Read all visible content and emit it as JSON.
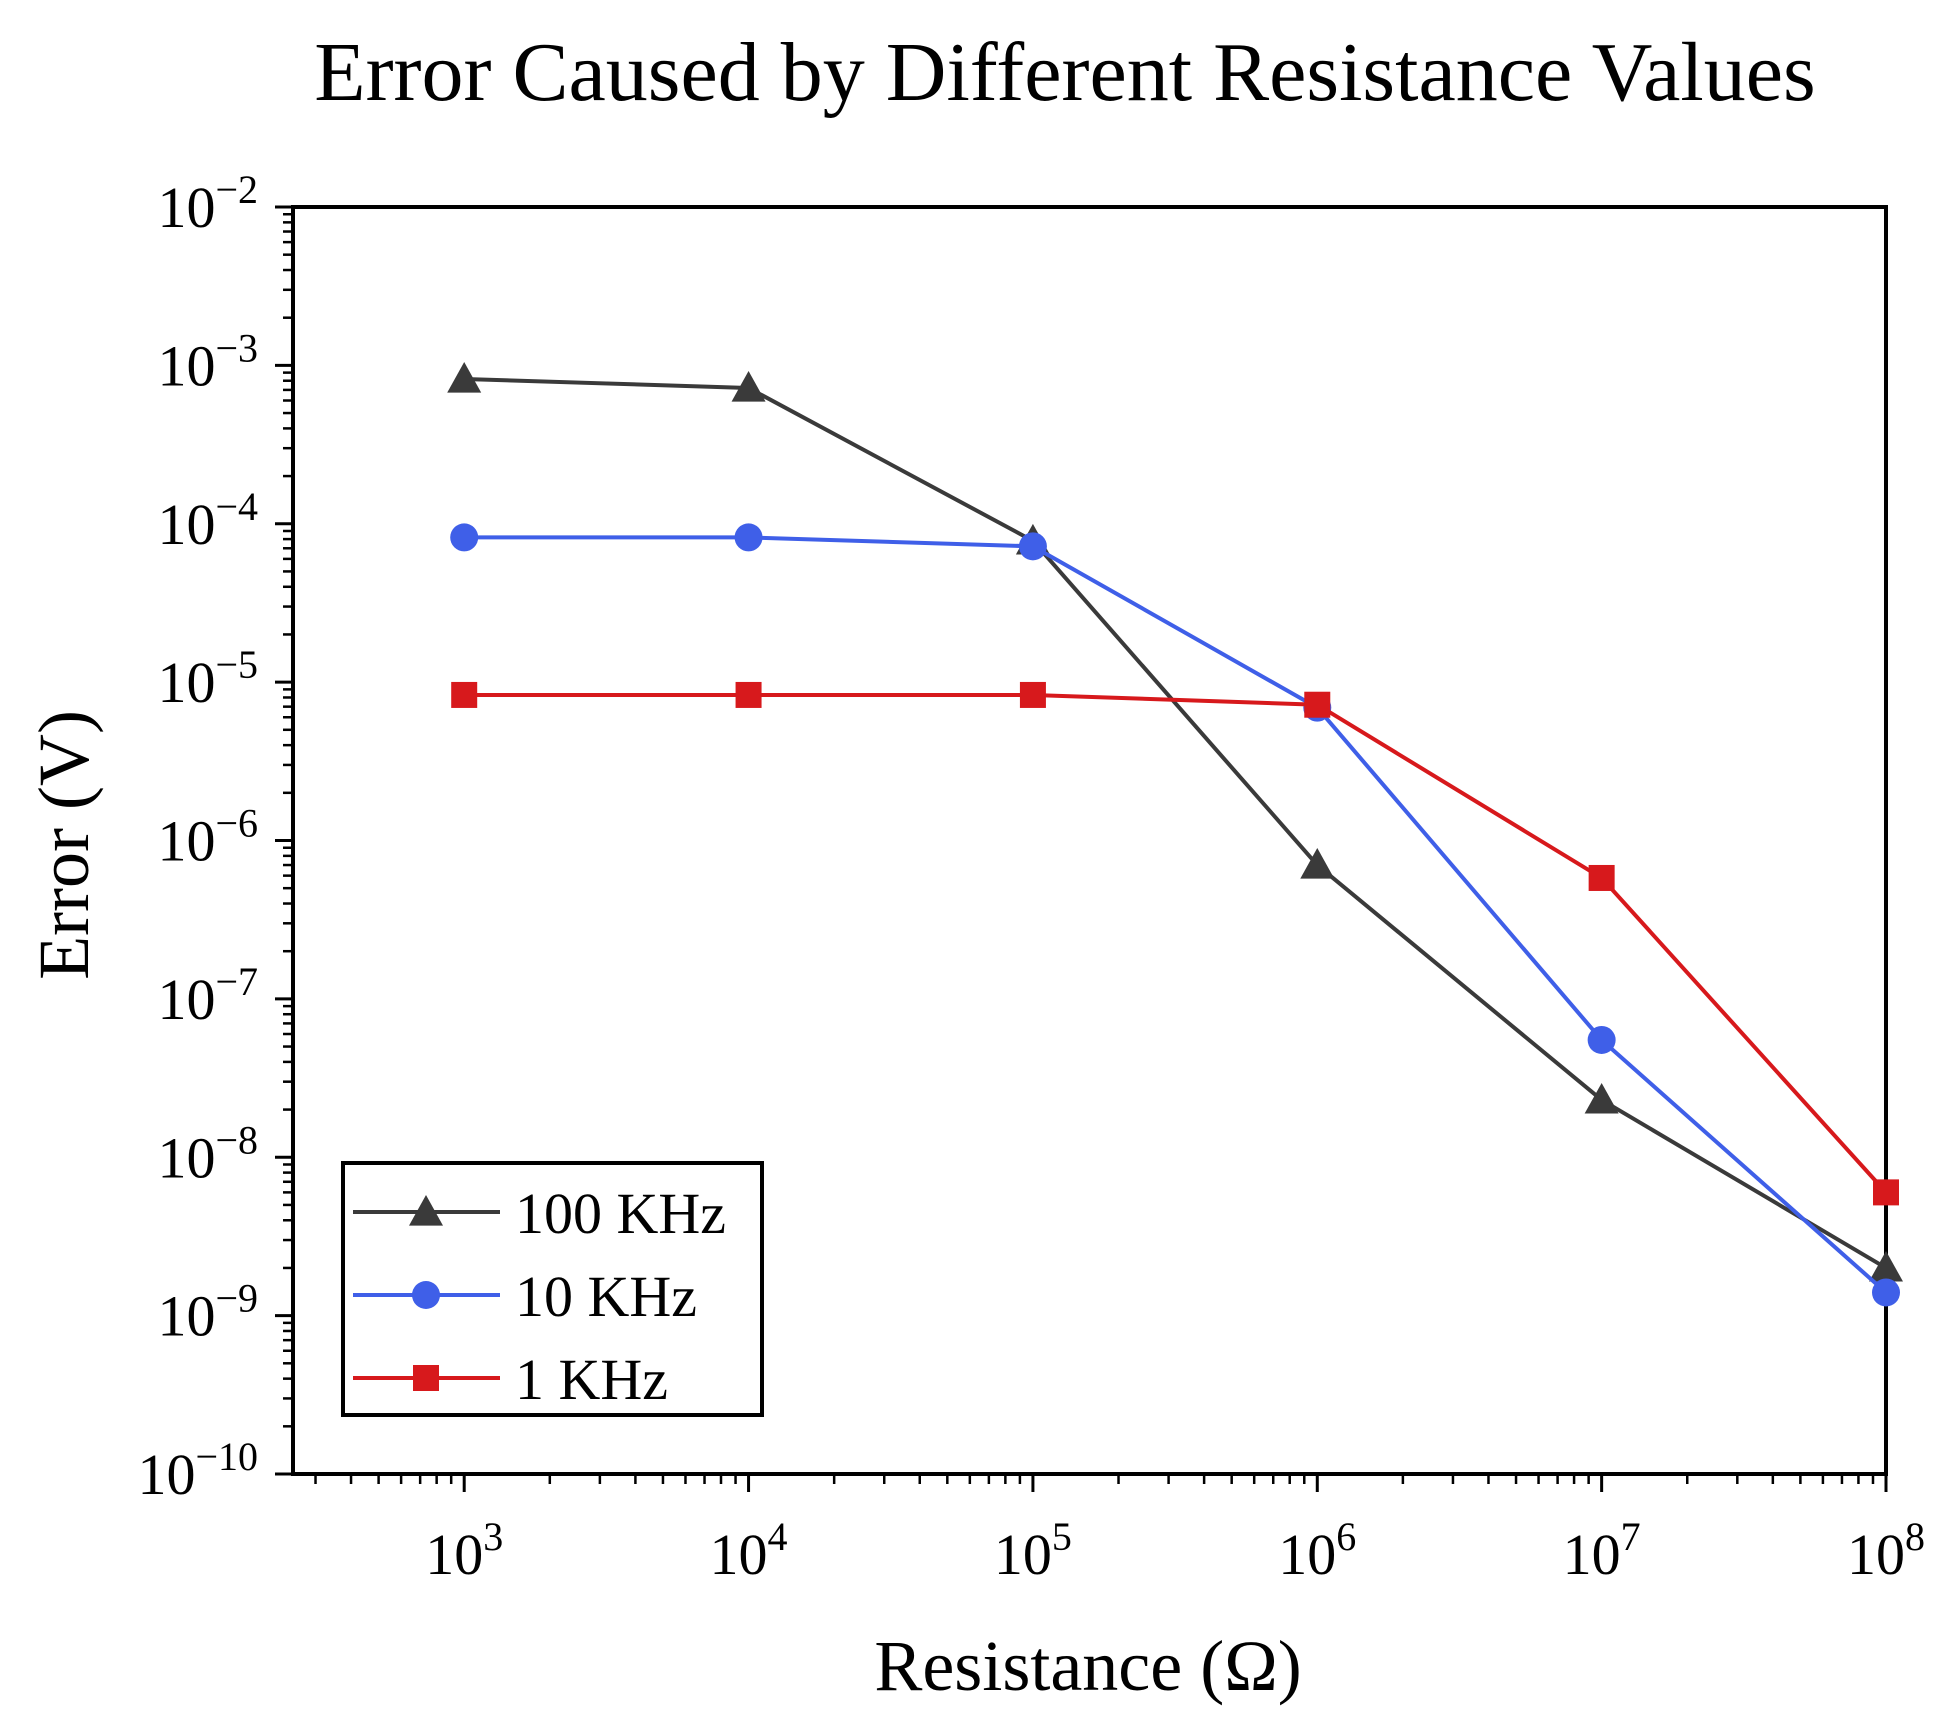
{
  "chart_data": {
    "type": "line",
    "title": "Error Caused by Different Resistance Values",
    "xlabel": "Resistance (Ω)",
    "ylabel": "Error (V)",
    "xscale": "log",
    "yscale": "log",
    "xlim": [
      250,
      100000000
    ],
    "ylim": [
      1e-10,
      0.01
    ],
    "x_ticks": [
      {
        "value": 1000,
        "base": "10",
        "exp": "3"
      },
      {
        "value": 10000,
        "base": "10",
        "exp": "4"
      },
      {
        "value": 100000,
        "base": "10",
        "exp": "5"
      },
      {
        "value": 1000000,
        "base": "10",
        "exp": "6"
      },
      {
        "value": 10000000,
        "base": "10",
        "exp": "7"
      },
      {
        "value": 100000000,
        "base": "10",
        "exp": "8"
      }
    ],
    "y_ticks": [
      {
        "value": 0.01,
        "base": "10",
        "exp": "−2"
      },
      {
        "value": 0.001,
        "base": "10",
        "exp": "−3"
      },
      {
        "value": 0.0001,
        "base": "10",
        "exp": "−4"
      },
      {
        "value": 1e-05,
        "base": "10",
        "exp": "−5"
      },
      {
        "value": 1e-06,
        "base": "10",
        "exp": "−6"
      },
      {
        "value": 1e-07,
        "base": "10",
        "exp": "−7"
      },
      {
        "value": 1e-08,
        "base": "10",
        "exp": "−8"
      },
      {
        "value": 1e-09,
        "base": "10",
        "exp": "−9"
      },
      {
        "value": 1e-10,
        "base": "10",
        "exp": "−10"
      }
    ],
    "grid": false,
    "legend_position": "bottom-left",
    "x": [
      1000,
      10000,
      100000,
      1000000,
      10000000,
      100000000
    ],
    "series": [
      {
        "name": "100 KHz",
        "color": "#3a3a3a",
        "marker": "triangle",
        "values": [
          0.00082,
          0.00072,
          7.8e-05,
          7e-07,
          2.3e-08,
          2e-09
        ]
      },
      {
        "name": "10 KHz",
        "color": "#3f5fe8",
        "marker": "circle",
        "values": [
          8.2e-05,
          8.2e-05,
          7.2e-05,
          6.9e-06,
          5.5e-08,
          1.4e-09
        ]
      },
      {
        "name": "1 KHz",
        "color": "#d7191c",
        "marker": "square",
        "values": [
          8.3e-06,
          8.3e-06,
          8.3e-06,
          7.2e-06,
          5.8e-07,
          6e-09
        ]
      }
    ]
  }
}
